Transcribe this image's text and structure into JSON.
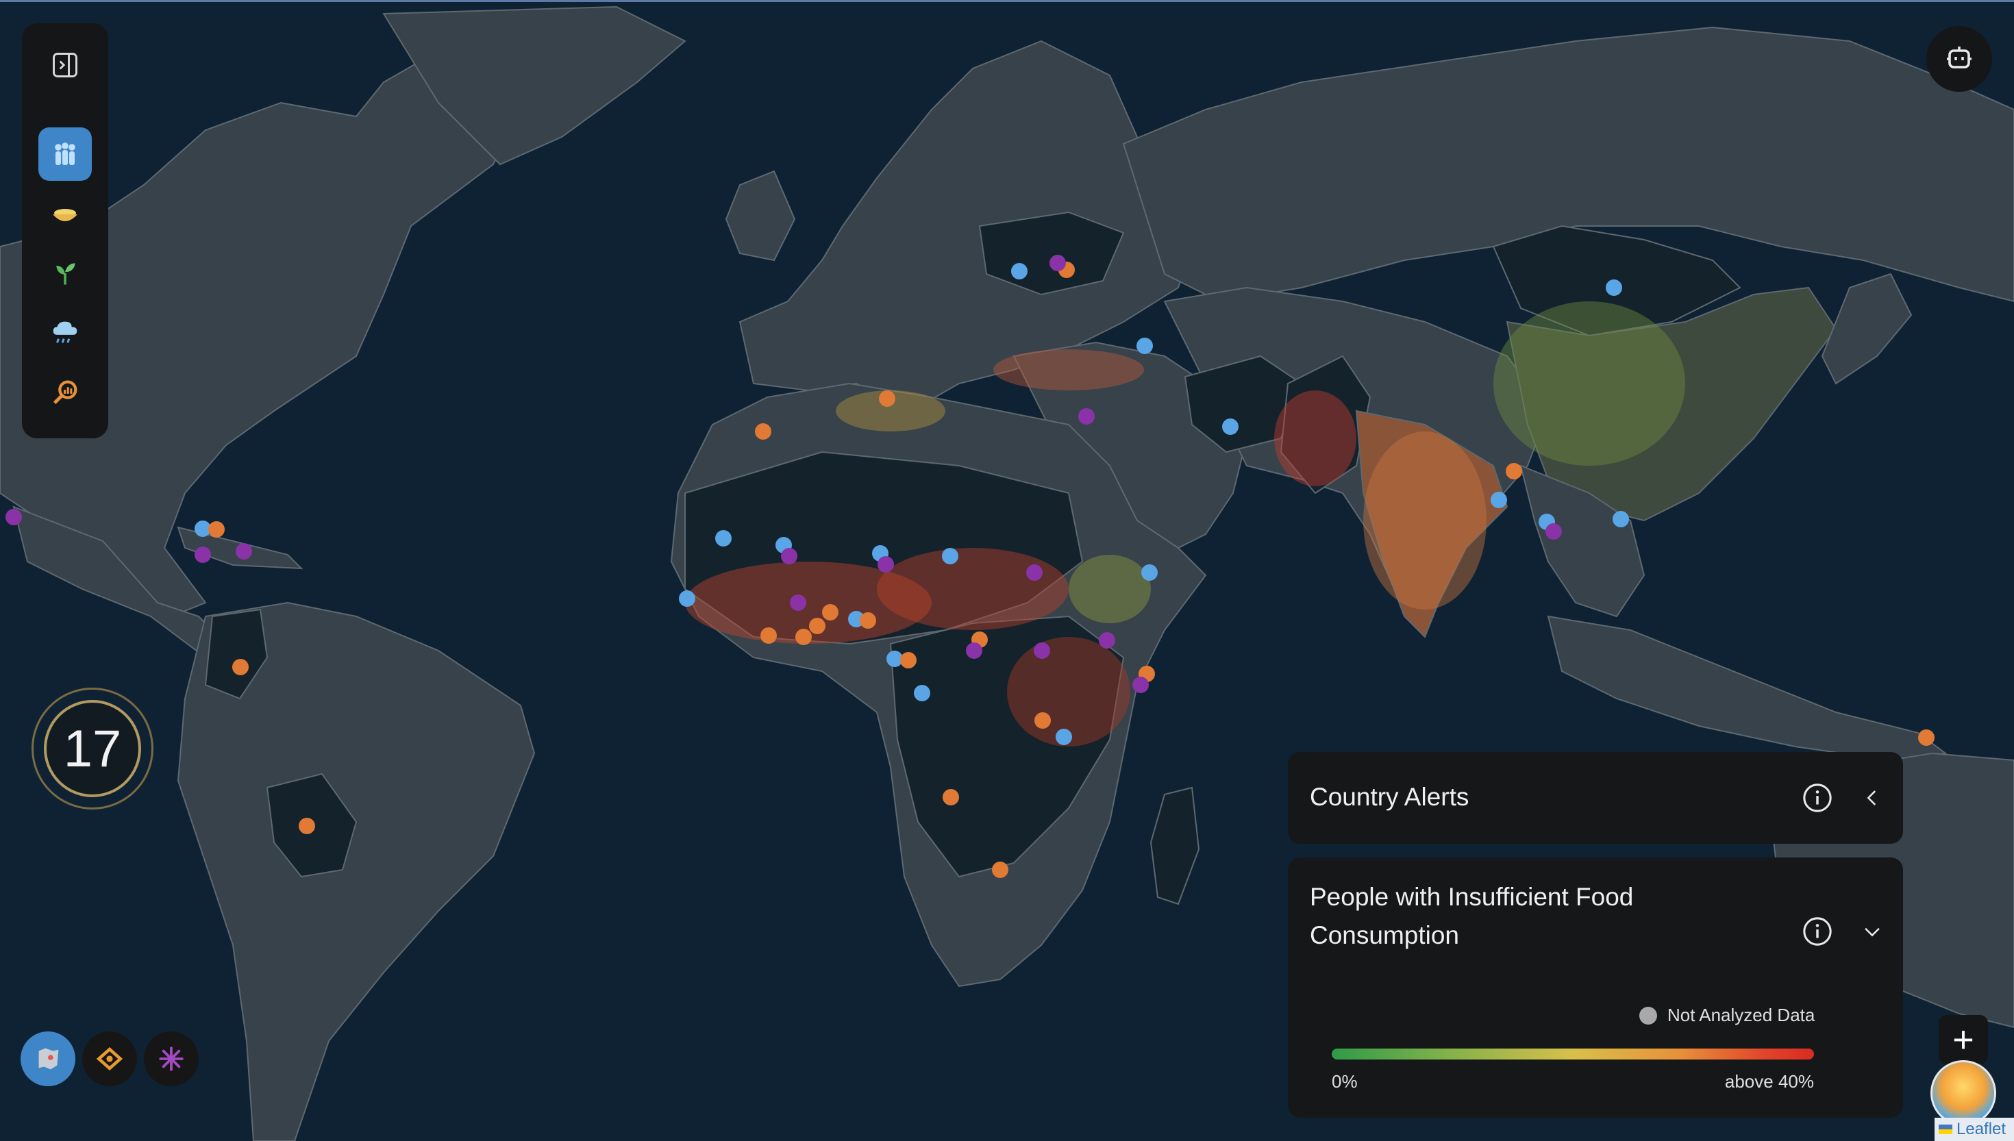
{
  "colors": {
    "ocean": "#0f2233",
    "land": "#37424b",
    "land_dark": "#14222c",
    "alert_blue": "#5aa5e6",
    "alert_orange": "#e07a34",
    "alert_purple": "#8a32a8",
    "toolbar_bg": "#151617",
    "active_blue": "#3f86c8"
  },
  "toolbar": {
    "items": [
      {
        "icon": "sidebar-toggle-icon"
      },
      {
        "icon": "people-icon",
        "active": true
      },
      {
        "icon": "food-bowl-icon"
      },
      {
        "icon": "sprout-icon"
      },
      {
        "icon": "rain-cloud-icon"
      },
      {
        "icon": "analysis-magnifier-icon"
      }
    ]
  },
  "assistant": {
    "icon": "robot-icon"
  },
  "counter": {
    "value": "17"
  },
  "layers": [
    {
      "icon": "map-layer-icon",
      "active": true
    },
    {
      "icon": "hazard-icon"
    },
    {
      "icon": "burst-icon"
    }
  ],
  "panels": {
    "country_alerts": {
      "title": "Country Alerts"
    },
    "insufficient_food": {
      "title_line1": "People with Insufficient Food",
      "title_line2": "Consumption",
      "legend": {
        "not_analyzed": "Not Analyzed Data",
        "min_label": "0%",
        "max_label": "above 40%"
      }
    }
  },
  "map": {
    "zoom_in_label": "+",
    "attribution": "Leaflet"
  }
}
